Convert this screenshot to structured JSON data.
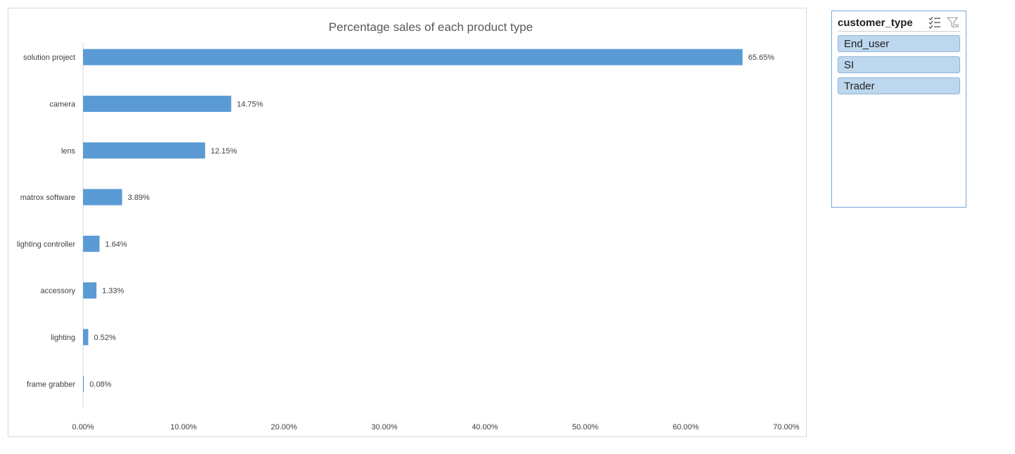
{
  "chart_data": {
    "type": "bar",
    "orientation": "horizontal",
    "title": "Percentage sales of each product type",
    "categories": [
      "solution project",
      "camera",
      "lens",
      "matrox software",
      "lighting controller",
      "accessory",
      "lighting",
      "frame grabber"
    ],
    "values": [
      65.65,
      14.75,
      12.15,
      3.89,
      1.64,
      1.33,
      0.52,
      0.08
    ],
    "data_labels": [
      "65.65%",
      "14.75%",
      "12.15%",
      "3.89%",
      "1.64%",
      "1.33%",
      "0.52%",
      "0.08%"
    ],
    "xlim": [
      0,
      70
    ],
    "ticks": [
      0,
      10,
      20,
      30,
      40,
      50,
      60,
      70
    ],
    "tick_labels": [
      "0.00%",
      "10.00%",
      "20.00%",
      "30.00%",
      "40.00%",
      "50.00%",
      "60.00%",
      "70.00%"
    ],
    "xlabel": "",
    "ylabel": "",
    "grid": false,
    "bar_color": "#5b9bd5"
  },
  "slicer": {
    "title": "customer_type",
    "items": [
      {
        "label": "End_user"
      },
      {
        "label": "SI"
      },
      {
        "label": "Trader"
      }
    ],
    "icons": [
      "multi-select-icon",
      "clear-filter-icon"
    ]
  }
}
